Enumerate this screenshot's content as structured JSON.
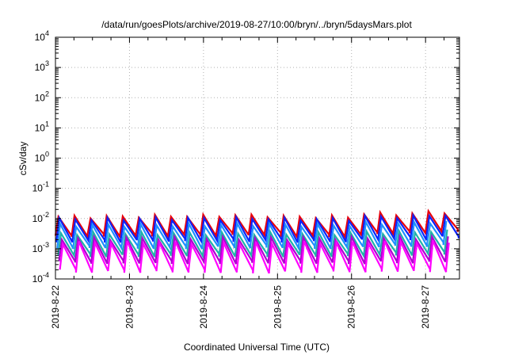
{
  "chart_data": {
    "type": "line",
    "title": "/data/run/goesPlots/archive/2019-08-27/10:00/bryn/../bryn/5daysMars.plot",
    "xlabel": "Coordinated Universal Time (UTC)",
    "ylabel": "cSv/day",
    "y_scale": "log",
    "ylim": [
      0.0001,
      10000
    ],
    "xlim": [
      "2019-08-22 00:00",
      "2019-08-27 11:00"
    ],
    "grid": true,
    "x_ticks": [
      "2019-8-22",
      "2019-8-23",
      "2019-8-24",
      "2019-8-25",
      "2019-8-26",
      "2019-8-27"
    ],
    "y_ticks": [
      {
        "base": "10",
        "exp": "-4"
      },
      {
        "base": "10",
        "exp": "-3"
      },
      {
        "base": "10",
        "exp": "-2"
      },
      {
        "base": "10",
        "exp": "-1"
      },
      {
        "base": "10",
        "exp": "0"
      },
      {
        "base": "10",
        "exp": "1"
      },
      {
        "base": "10",
        "exp": "2"
      },
      {
        "base": "10",
        "exp": "3"
      },
      {
        "base": "10",
        "exp": "4"
      }
    ],
    "sawtooth": {
      "cycles_per_day": 4.6,
      "note_series_shape": "periodic sawtooth: sharp rise then gradual decay"
    },
    "series": [
      {
        "color": "#e8000b",
        "peak": 0.0115,
        "trough": 0.0027,
        "day_trend": [
          1.0,
          1.05,
          1.1,
          1.0,
          1.25,
          1.45
        ]
      },
      {
        "color": "#0b24fb",
        "peak": 0.0095,
        "trough": 0.0018,
        "day_trend": [
          1.0,
          1.05,
          1.05,
          1.0,
          1.2,
          1.35
        ]
      },
      {
        "color": "#1e90ff",
        "peak": 0.006,
        "trough": 0.0011,
        "day_trend": [
          1.0,
          1.0,
          1.05,
          1.0,
          1.15,
          1.3
        ]
      },
      {
        "color": "#20b2aa",
        "peak": 0.0032,
        "trough": 0.0006,
        "day_trend": [
          1.0,
          1.0,
          1.0,
          1.0,
          1.1,
          1.2
        ]
      },
      {
        "color": "#b000d0",
        "peak": 0.0022,
        "trough": 0.00035,
        "day_trend": [
          1.0,
          1.0,
          1.0,
          1.0,
          1.05,
          1.1
        ]
      },
      {
        "color": "#ff00ff",
        "peak": 0.0016,
        "trough": 0.00018,
        "day_trend": [
          1.0,
          1.0,
          0.95,
          1.0,
          1.05,
          1.05
        ]
      }
    ]
  }
}
